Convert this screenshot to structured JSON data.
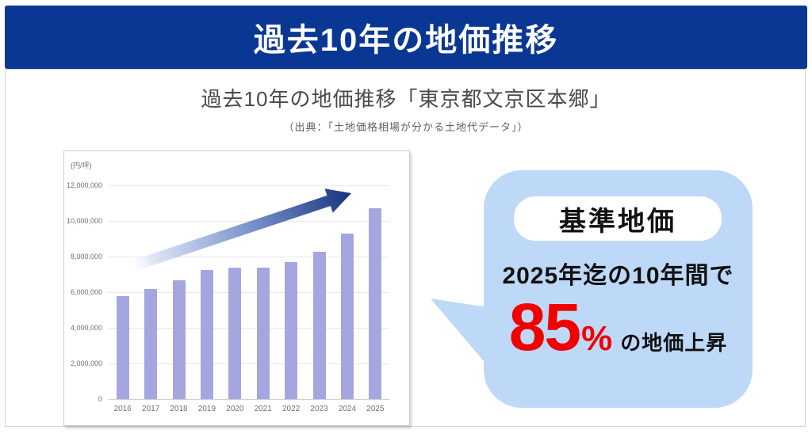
{
  "banner": {
    "title": "過去10年の地価推移",
    "bg_color": "#0a3794",
    "text_color": "#ffffff"
  },
  "content": {
    "title": "過去10年の地価推移「東京都文京区本郷」",
    "subtitle": "（出典：「土地価格相場が分かる土地代データ」）"
  },
  "chart_data": {
    "type": "bar",
    "title": "過去10年の地価推移「東京都文京区本郷」",
    "unit_label": "(円/坪)",
    "categories": [
      "2016",
      "2017",
      "2018",
      "2019",
      "2020",
      "2021",
      "2022",
      "2023",
      "2024",
      "2025"
    ],
    "values": [
      5800000,
      6200000,
      6650000,
      7250000,
      7400000,
      7400000,
      7700000,
      8250000,
      9300000,
      10730000
    ],
    "ylim": [
      0,
      12000000
    ],
    "ytick_labels_top_to_bottom": [
      "12,000,000",
      "10,000,000",
      "8,000,000",
      "6,000,000",
      "4,000,000",
      "2,000,000",
      "0"
    ],
    "grid": true,
    "legend": "none",
    "bar_color": "#a5a6e0",
    "annotation": "upward-trend-arrow"
  },
  "callout": {
    "badge": "基準地価",
    "line1": "2025年迄の10年間で",
    "highlight_value": "85",
    "highlight_unit": "%",
    "suffix": "の地価上昇",
    "bubble_color": "#bed9f7",
    "highlight_color": "#f20000"
  }
}
